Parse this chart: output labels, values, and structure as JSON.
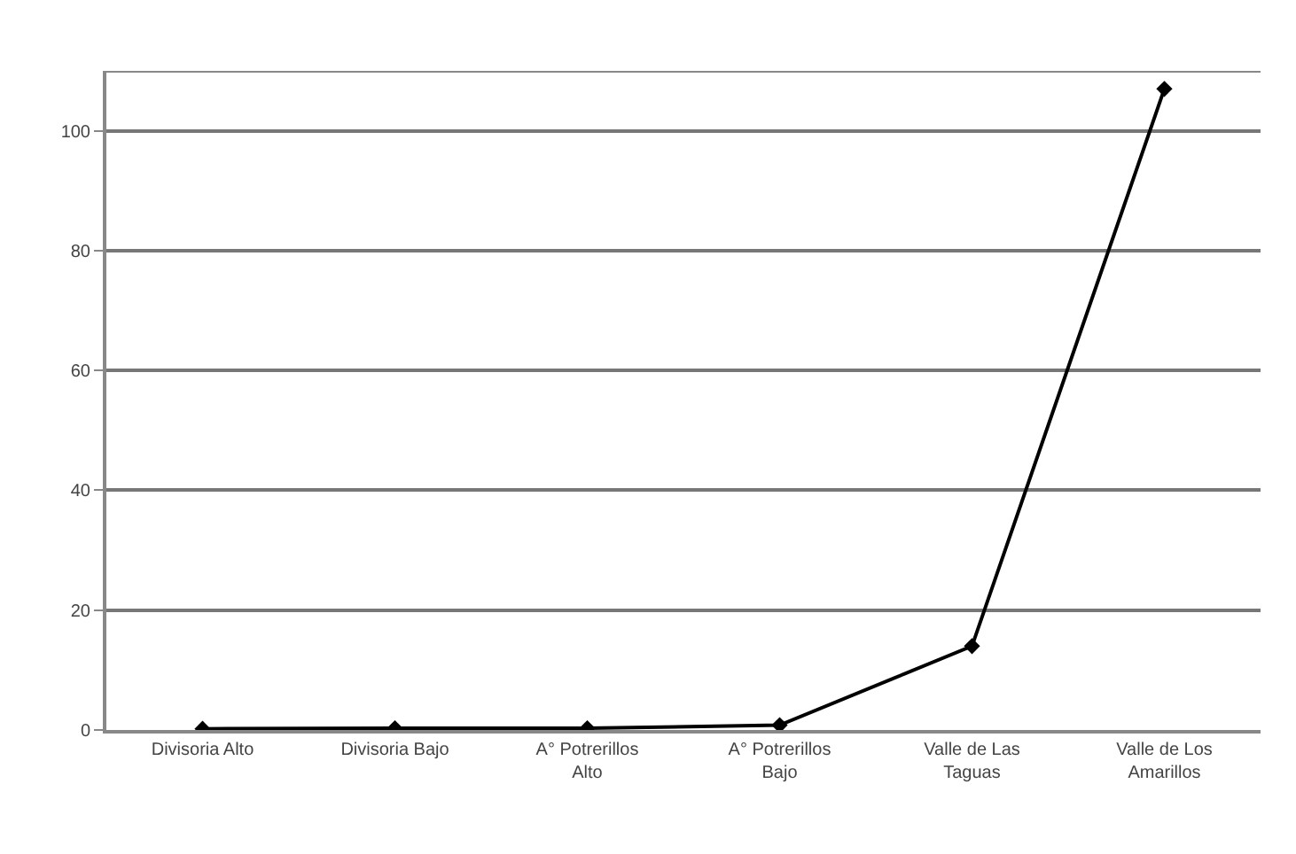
{
  "chart_data": {
    "type": "line",
    "categories": [
      "Divisoria Alto",
      "Divisoria Bajo",
      "A° Potrerillos Alto",
      "A° Potrerillos Bajo",
      "Valle de Las Taguas",
      "Valle de Los Amarillos"
    ],
    "series": [
      {
        "color": "#000000",
        "values": [
          0.2,
          0.3,
          0.3,
          0.8,
          14,
          107
        ]
      }
    ],
    "ylim": [
      0,
      110
    ],
    "yticks": [
      0,
      20,
      40,
      60,
      80,
      100
    ],
    "grid": "y",
    "marker": "diamond",
    "line_style": "solid"
  }
}
